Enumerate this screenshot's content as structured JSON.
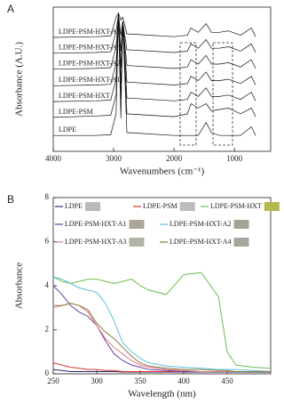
{
  "chart_data": [
    {
      "type": "line",
      "panel": "A",
      "xlabel": "Wavenumbers (cm⁻¹)",
      "ylabel": "Absorbance (A.U.)",
      "xlim": [
        4000,
        400
      ],
      "ylim": [
        0,
        10
      ],
      "xticks": [
        4000,
        3000,
        2000,
        1000
      ],
      "x": [
        4000,
        3300,
        3050,
        2960,
        2920,
        2880,
        2850,
        2780,
        2000,
        1780,
        1720,
        1600,
        1470,
        1380,
        1250,
        1100,
        900,
        720,
        650
      ],
      "series": [
        {
          "name": "LDPE",
          "color": "#111111",
          "values": [
            1.1,
            1.1,
            1.15,
            2.6,
            9.5,
            2.3,
            9.0,
            1.3,
            1.1,
            1.1,
            1.1,
            1.1,
            2.0,
            1.3,
            1.1,
            1.1,
            1.1,
            1.7,
            1.1
          ]
        },
        {
          "name": "LDPE-PSM",
          "color": "#111111",
          "values": [
            2.35,
            2.45,
            2.5,
            3.9,
            9.5,
            3.6,
            9.0,
            2.6,
            2.4,
            2.6,
            3.3,
            3.0,
            3.3,
            2.8,
            2.9,
            3.0,
            2.6,
            3.0,
            2.4
          ]
        },
        {
          "name": "LDPE-PSM-HXT",
          "color": "#111111",
          "values": [
            3.45,
            3.5,
            3.55,
            5.0,
            9.5,
            4.7,
            9.0,
            3.7,
            3.5,
            3.6,
            4.1,
            3.8,
            4.4,
            3.8,
            3.8,
            3.9,
            3.6,
            4.1,
            3.5
          ]
        },
        {
          "name": "LDPE-PSM-HXT-A1",
          "color": "#111111",
          "values": [
            4.55,
            4.6,
            4.65,
            6.1,
            9.5,
            5.8,
            9.0,
            4.8,
            4.6,
            4.7,
            5.2,
            4.9,
            5.5,
            4.9,
            4.9,
            5.0,
            4.7,
            5.2,
            4.6
          ]
        },
        {
          "name": "LDPE-PSM-HXT-A2",
          "color": "#111111",
          "values": [
            5.7,
            5.75,
            5.8,
            7.25,
            9.5,
            6.95,
            9.0,
            5.95,
            5.75,
            5.85,
            6.35,
            6.05,
            6.65,
            6.05,
            6.05,
            6.15,
            5.85,
            6.35,
            5.75
          ]
        },
        {
          "name": "LDPE-PSM-HXT-A3",
          "color": "#111111",
          "values": [
            6.8,
            6.85,
            6.9,
            8.35,
            9.5,
            8.05,
            9.0,
            7.05,
            6.85,
            6.95,
            7.45,
            7.15,
            7.75,
            7.15,
            7.15,
            7.25,
            6.95,
            7.45,
            6.85
          ]
        },
        {
          "name": "LDPE-PSM-HXT-A4",
          "color": "#111111",
          "values": [
            7.9,
            7.95,
            8.0,
            9.3,
            9.6,
            9.1,
            9.3,
            8.15,
            7.95,
            8.05,
            8.55,
            8.25,
            8.85,
            8.25,
            8.25,
            8.35,
            8.05,
            8.55,
            7.95
          ]
        }
      ]
    },
    {
      "type": "line",
      "panel": "B",
      "xlabel": "Wavelength (nm)",
      "ylabel": "Absorbance",
      "xlim": [
        250,
        500
      ],
      "ylim": [
        0,
        8
      ],
      "xticks": [
        250,
        300,
        350,
        400,
        450
      ],
      "yticks": [
        0,
        2,
        4,
        6,
        8
      ],
      "x": [
        250,
        260,
        270,
        280,
        290,
        300,
        310,
        320,
        330,
        340,
        350,
        360,
        380,
        400,
        420,
        440,
        450,
        460,
        480,
        500
      ],
      "series": [
        {
          "name": "LDPE",
          "color": "#2a2a6a",
          "swatch": "#b9b9b9",
          "values": [
            0.2,
            0.15,
            0.1,
            0.1,
            0.1,
            0.1,
            0.1,
            0.1,
            0.08,
            0.08,
            0.08,
            0.08,
            0.08,
            0.08,
            0.08,
            0.08,
            0.08,
            0.08,
            0.08,
            0.08
          ]
        },
        {
          "name": "LDPE-PSM",
          "color": "#d9362b",
          "swatch": "#bcbcbc",
          "values": [
            0.5,
            0.4,
            0.3,
            0.25,
            0.2,
            0.2,
            0.15,
            0.15,
            0.1,
            0.1,
            0.1,
            0.1,
            0.1,
            0.1,
            0.1,
            0.1,
            0.1,
            0.1,
            0.1,
            0.1
          ]
        },
        {
          "name": "LDPE-PSM-HXT",
          "color": "#6abf4b",
          "swatch": "#b5b84a",
          "values": [
            4.4,
            4.2,
            4.1,
            4.2,
            4.3,
            4.3,
            4.2,
            4.1,
            4.2,
            4.3,
            4.0,
            3.8,
            3.6,
            4.5,
            4.6,
            3.5,
            1.0,
            0.4,
            0.3,
            0.25
          ]
        },
        {
          "name": "LDPE-PSM-HXT-A1",
          "color": "#6b3fa0",
          "swatch": "#a9a697",
          "values": [
            4.0,
            3.6,
            3.1,
            2.8,
            2.6,
            2.2,
            1.5,
            0.9,
            0.6,
            0.4,
            0.3,
            0.2,
            0.15,
            0.1,
            0.1,
            0.1,
            0.1,
            0.1,
            0.1,
            0.1
          ]
        },
        {
          "name": "LDPE-PSM-HXT-A2",
          "color": "#5bc0de",
          "swatch": "#a5a395",
          "values": [
            4.4,
            4.3,
            4.1,
            3.9,
            3.8,
            3.7,
            3.2,
            2.4,
            1.4,
            1.0,
            0.7,
            0.5,
            0.35,
            0.3,
            0.25,
            0.2,
            0.2,
            0.2,
            0.15,
            0.1
          ]
        },
        {
          "name": "LDPE-PSM-HXT-A3",
          "color": "#e17a8a",
          "swatch": "#b3b2a8",
          "values": [
            3.0,
            3.1,
            3.2,
            3.1,
            2.8,
            2.2,
            1.6,
            1.2,
            0.9,
            0.6,
            0.4,
            0.3,
            0.2,
            0.15,
            0.1,
            0.1,
            0.1,
            0.1,
            0.1,
            0.1
          ]
        },
        {
          "name": "LDPE-PSM-HXT-A4",
          "color": "#8a7a3a",
          "swatch": "#a8a69c",
          "values": [
            3.1,
            3.1,
            3.2,
            3.1,
            2.9,
            2.3,
            1.9,
            1.6,
            1.2,
            0.8,
            0.5,
            0.35,
            0.25,
            0.2,
            0.2,
            0.15,
            0.15,
            0.1,
            0.1,
            0.1
          ]
        }
      ]
    }
  ]
}
